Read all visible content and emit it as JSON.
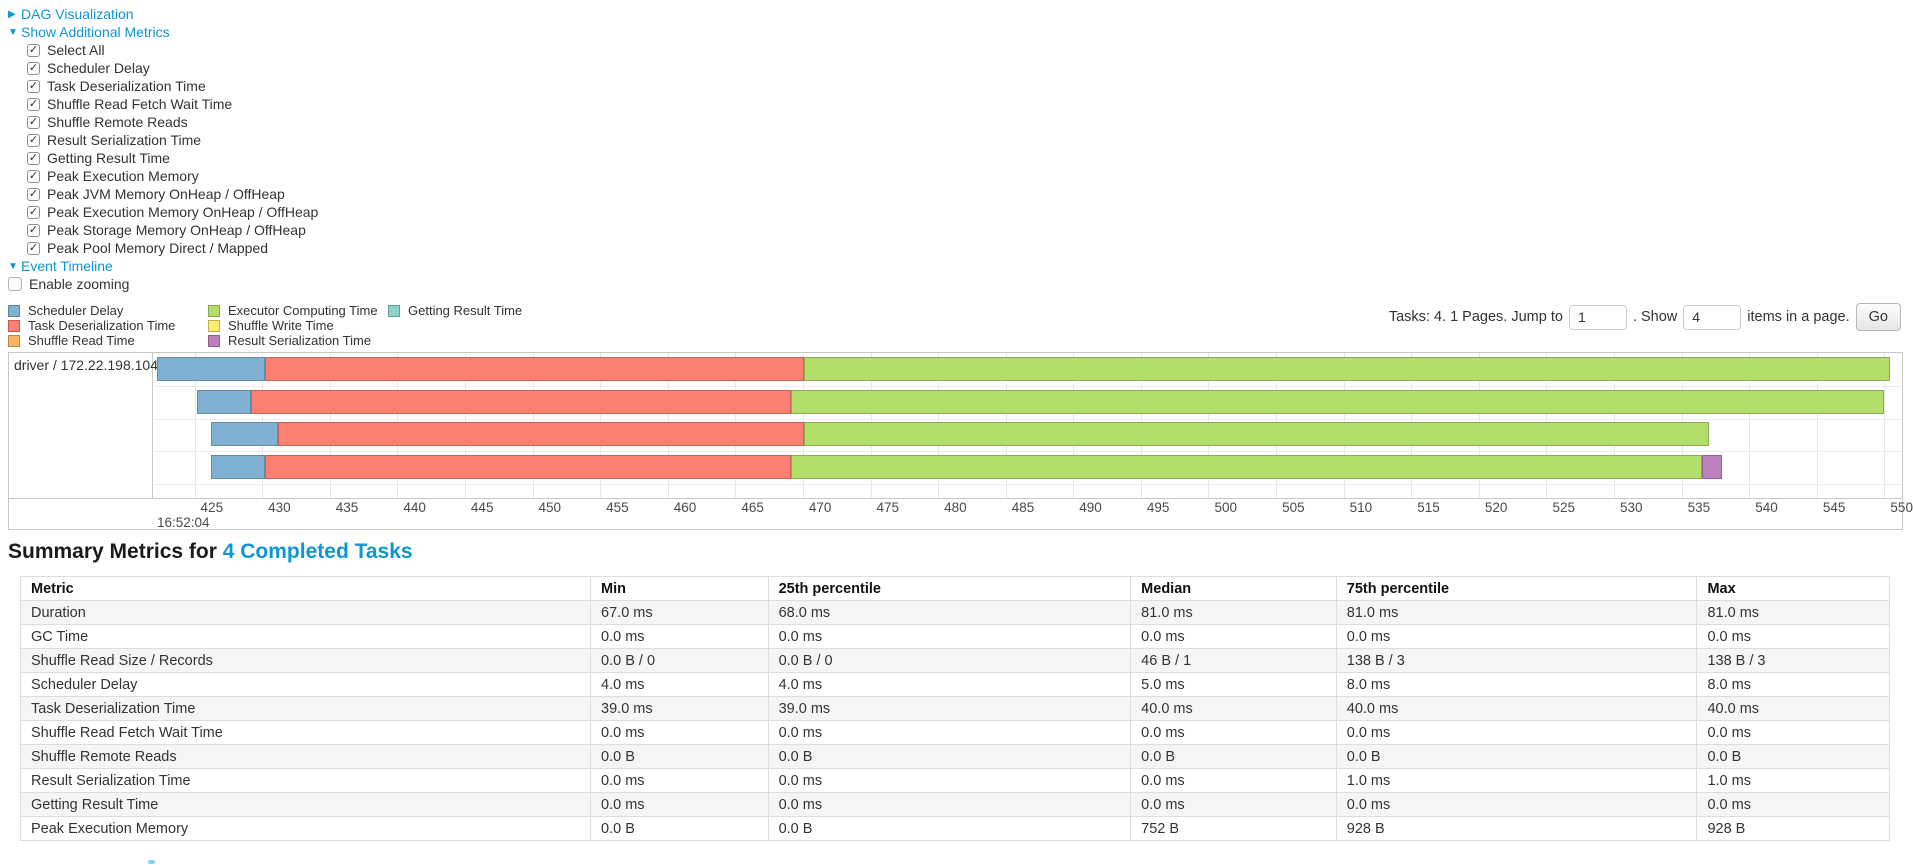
{
  "accordion": {
    "dag": {
      "label": "DAG Visualization",
      "state": "collapsed"
    },
    "metrics": {
      "label": "Show Additional Metrics",
      "state": "expanded"
    },
    "metric_checkboxes": [
      {
        "label": "Select All",
        "checked": true
      },
      {
        "label": "Scheduler Delay",
        "checked": true
      },
      {
        "label": "Task Deserialization Time",
        "checked": true
      },
      {
        "label": "Shuffle Read Fetch Wait Time",
        "checked": true
      },
      {
        "label": "Shuffle Remote Reads",
        "checked": true
      },
      {
        "label": "Result Serialization Time",
        "checked": true
      },
      {
        "label": "Getting Result Time",
        "checked": true
      },
      {
        "label": "Peak Execution Memory",
        "checked": true
      },
      {
        "label": "Peak JVM Memory OnHeap / OffHeap",
        "checked": true
      },
      {
        "label": "Peak Execution Memory OnHeap / OffHeap",
        "checked": true
      },
      {
        "label": "Peak Storage Memory OnHeap / OffHeap",
        "checked": true
      },
      {
        "label": "Peak Pool Memory Direct / Mapped",
        "checked": true
      }
    ],
    "event_timeline": {
      "label": "Event Timeline",
      "state": "expanded"
    },
    "enable_zooming": {
      "label": "Enable zooming",
      "checked": false
    }
  },
  "legend": {
    "columns": [
      [
        {
          "label": "Scheduler Delay",
          "color": "#80B1D3"
        },
        {
          "label": "Task Deserialization Time",
          "color": "#FB8072"
        },
        {
          "label": "Shuffle Read Time",
          "color": "#FDB462"
        }
      ],
      [
        {
          "label": "Executor Computing Time",
          "color": "#B3DE69"
        },
        {
          "label": "Shuffle Write Time",
          "color": "#FFED6F"
        },
        {
          "label": "Result Serialization Time",
          "color": "#BC80BD"
        }
      ],
      [
        {
          "label": "Getting Result Time",
          "color": "#8DD3C7"
        }
      ]
    ]
  },
  "pagination": {
    "prefix": "Tasks: 4. 1 Pages. Jump to",
    "jump_value": "1",
    "mid": ". Show",
    "show_value": "4",
    "suffix": "items in a page.",
    "go_label": "Go"
  },
  "chart_data": {
    "type": "timeline",
    "executor_label": "driver / 172.22.198.104",
    "x_major_label": "16:52:04",
    "x_domain": [
      422,
      551.3
    ],
    "x_ticks": [
      425,
      430,
      435,
      440,
      445,
      450,
      455,
      460,
      465,
      470,
      475,
      480,
      485,
      490,
      495,
      500,
      505,
      510,
      515,
      520,
      525,
      530,
      535,
      540,
      545,
      550
    ],
    "series_colors": {
      "scheduler_delay": "#80B1D3",
      "task_deserialization": "#FB8072",
      "shuffle_read": "#FDB462",
      "executor_computing": "#B3DE69",
      "shuffle_write": "#FFED6F",
      "result_serialization": "#BC80BD",
      "getting_result": "#8DD3C7"
    },
    "tasks": [
      {
        "row": 0,
        "segments": [
          {
            "type": "scheduler_delay",
            "start": 422.2,
            "end": 430.2
          },
          {
            "type": "task_deserialization",
            "start": 430.2,
            "end": 470.1
          },
          {
            "type": "executor_computing",
            "start": 470.1,
            "end": 550.4
          }
        ]
      },
      {
        "row": 1,
        "segments": [
          {
            "type": "scheduler_delay",
            "start": 425.2,
            "end": 429.2
          },
          {
            "type": "task_deserialization",
            "start": 429.2,
            "end": 469.1
          },
          {
            "type": "executor_computing",
            "start": 469.1,
            "end": 550.0
          }
        ]
      },
      {
        "row": 2,
        "segments": [
          {
            "type": "scheduler_delay",
            "start": 426.2,
            "end": 431.2
          },
          {
            "type": "task_deserialization",
            "start": 431.2,
            "end": 470.1
          },
          {
            "type": "executor_computing",
            "start": 470.1,
            "end": 537.0
          }
        ]
      },
      {
        "row": 3,
        "segments": [
          {
            "type": "scheduler_delay",
            "start": 426.2,
            "end": 430.2
          },
          {
            "type": "task_deserialization",
            "start": 430.2,
            "end": 469.1
          },
          {
            "type": "executor_computing",
            "start": 469.1,
            "end": 536.5
          },
          {
            "type": "result_serialization",
            "start": 536.5,
            "end": 538.0
          }
        ]
      }
    ]
  },
  "summary": {
    "title_prefix": "Summary Metrics for",
    "title_link": "4 Completed Tasks",
    "table": {
      "headers": [
        "Metric",
        "Min",
        "25th percentile",
        "Median",
        "75th percentile",
        "Max"
      ],
      "rows": [
        {
          "metric": "Duration",
          "values": [
            "67.0 ms",
            "68.0 ms",
            "81.0 ms",
            "81.0 ms",
            "81.0 ms"
          ]
        },
        {
          "metric": "GC Time",
          "values": [
            "0.0 ms",
            "0.0 ms",
            "0.0 ms",
            "0.0 ms",
            "0.0 ms"
          ]
        },
        {
          "metric": "Shuffle Read Size / Records",
          "values": [
            "0.0 B / 0",
            "0.0 B / 0",
            "46 B / 1",
            "138 B / 3",
            "138 B / 3"
          ]
        },
        {
          "metric": "Scheduler Delay",
          "values": [
            "4.0 ms",
            "4.0 ms",
            "5.0 ms",
            "8.0 ms",
            "8.0 ms"
          ]
        },
        {
          "metric": "Task Deserialization Time",
          "values": [
            "39.0 ms",
            "39.0 ms",
            "40.0 ms",
            "40.0 ms",
            "40.0 ms"
          ]
        },
        {
          "metric": "Shuffle Read Fetch Wait Time",
          "values": [
            "0.0 ms",
            "0.0 ms",
            "0.0 ms",
            "0.0 ms",
            "0.0 ms"
          ]
        },
        {
          "metric": "Shuffle Remote Reads",
          "values": [
            "0.0 B",
            "0.0 B",
            "0.0 B",
            "0.0 B",
            "0.0 B"
          ]
        },
        {
          "metric": "Result Serialization Time",
          "values": [
            "0.0 ms",
            "0.0 ms",
            "0.0 ms",
            "1.0 ms",
            "1.0 ms"
          ]
        },
        {
          "metric": "Getting Result Time",
          "values": [
            "0.0 ms",
            "0.0 ms",
            "0.0 ms",
            "0.0 ms",
            "0.0 ms"
          ]
        },
        {
          "metric": "Peak Execution Memory",
          "values": [
            "0.0 B",
            "0.0 B",
            "752 B",
            "928 B",
            "928 B"
          ]
        }
      ]
    }
  }
}
